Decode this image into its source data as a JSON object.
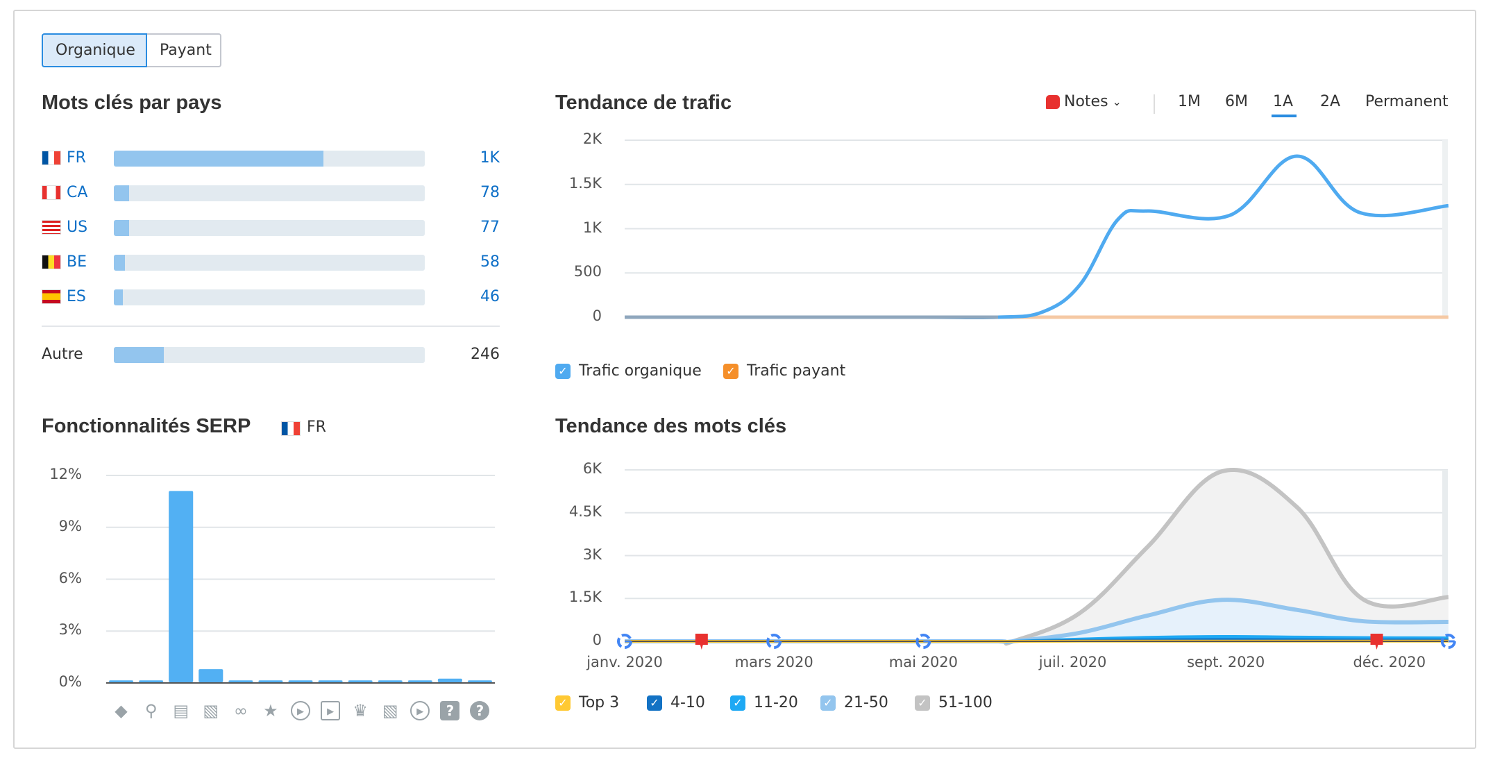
{
  "tabs": {
    "organic": "Organique",
    "paid": "Payant"
  },
  "countries": {
    "title": "Mots clés par pays",
    "items": [
      {
        "code": "FR",
        "value": "1K",
        "fill": 0.674
      },
      {
        "code": "CA",
        "value": "78",
        "fill": 0.05
      },
      {
        "code": "US",
        "value": "77",
        "fill": 0.05
      },
      {
        "code": "BE",
        "value": "58",
        "fill": 0.035
      },
      {
        "code": "ES",
        "value": "46",
        "fill": 0.03
      }
    ],
    "other": {
      "label": "Autre",
      "value": "246",
      "fill": 0.16
    }
  },
  "traffic": {
    "title": "Tendance de trafic",
    "notes": "Notes",
    "periods": [
      "1M",
      "6M",
      "1A",
      "2A",
      "Permanent"
    ],
    "active_period": "1A",
    "legend": [
      "Trafic organique",
      "Trafic payant"
    ]
  },
  "serp": {
    "title": "Fonctionnalités SERP",
    "country": "FR",
    "icons": [
      "knowledge-panel-icon",
      "local-pack-icon",
      "featured-snippet-icon",
      "image-pack-icon",
      "sitelinks-icon",
      "reviews-icon",
      "video-icon",
      "featured-video-icon",
      "top-stories-icon",
      "image-icon",
      "video-carousel-icon",
      "faq-icon",
      "people-also-ask-icon"
    ]
  },
  "keywords": {
    "title": "Tendance des mots clés",
    "legend": [
      "Top 3",
      "4-10",
      "11-20",
      "21-50",
      "51-100"
    ]
  },
  "colors": {
    "organic": "#4faaf0",
    "paid": "#f58f2a",
    "top3": "#ffc933",
    "p4_10": "#1372c4",
    "p11_20": "#1ea9f4",
    "p21_50": "#93c5ee",
    "p51_100": "#c3c3c3"
  },
  "chart_data": [
    {
      "type": "line",
      "title": "Tendance de trafic",
      "x_unit": "months since janv. 2020",
      "ylim": [
        0,
        2000
      ],
      "yticks": [
        "0",
        "500",
        "1K",
        "1.5K",
        "2K"
      ],
      "series": [
        {
          "name": "Trafic organique",
          "x": [
            0,
            2,
            4,
            5,
            5.6,
            6.1,
            6.6,
            7.0,
            8.1,
            9.0,
            9.85,
            11.03
          ],
          "values": [
            0,
            0,
            0,
            0,
            60,
            370,
            1100,
            1200,
            1150,
            1820,
            1180,
            1260
          ]
        },
        {
          "name": "Trafic payant",
          "x": [
            0,
            11.03
          ],
          "values": [
            0,
            0
          ]
        }
      ]
    },
    {
      "type": "area",
      "title": "Tendance des mots clés",
      "stacked": true,
      "ylim": [
        0,
        6000
      ],
      "yticks": [
        "0",
        "1.5K",
        "3K",
        "4.5K",
        "6K"
      ],
      "xticks": [
        {
          "label": "janv. 2020",
          "x": 0
        },
        {
          "label": "mars 2020",
          "x": 2
        },
        {
          "label": "mai 2020",
          "x": 4
        },
        {
          "label": "juil. 2020",
          "x": 6
        },
        {
          "label": "sept. 2020",
          "x": 8.05
        },
        {
          "label": "déc. 2020",
          "x": 10.24
        }
      ],
      "x": [
        0,
        2,
        4,
        5,
        5.2,
        6.1,
        7.0,
        8.0,
        9.0,
        9.9,
        11.03
      ],
      "series": [
        {
          "name": "Top 3",
          "values": [
            0,
            0,
            0,
            0,
            0,
            5,
            5,
            5,
            5,
            5,
            5
          ]
        },
        {
          "name": "4-10",
          "values": [
            0,
            0,
            0,
            0,
            0,
            25,
            45,
            55,
            50,
            45,
            40
          ]
        },
        {
          "name": "11-20",
          "values": [
            0,
            0,
            0,
            0,
            0,
            50,
            90,
            110,
            95,
            80,
            75
          ]
        },
        {
          "name": "21-50",
          "values": [
            0,
            0,
            0,
            0,
            0,
            220,
            760,
            1280,
            950,
            570,
            560
          ]
        },
        {
          "name": "51-100",
          "values": [
            0,
            0,
            0,
            0,
            0,
            700,
            2400,
            4500,
            3600,
            750,
            870
          ]
        }
      ],
      "markers": [
        {
          "type": "google",
          "x": 0
        },
        {
          "type": "note",
          "x": 1.03
        },
        {
          "type": "google",
          "x": 2
        },
        {
          "type": "google",
          "x": 4
        },
        {
          "type": "note",
          "x": 10.07
        },
        {
          "type": "google",
          "x": 11.03
        }
      ]
    },
    {
      "type": "bar",
      "title": "Fonctionnalités SERP",
      "ylim": [
        0,
        12
      ],
      "yticks": [
        "0%",
        "3%",
        "6%",
        "9%",
        "12%"
      ],
      "values": [
        0.15,
        0.15,
        11.1,
        0.8,
        0.15,
        0.15,
        0.15,
        0.15,
        0.15,
        0.15,
        0.15,
        0.25,
        0.15
      ]
    }
  ]
}
